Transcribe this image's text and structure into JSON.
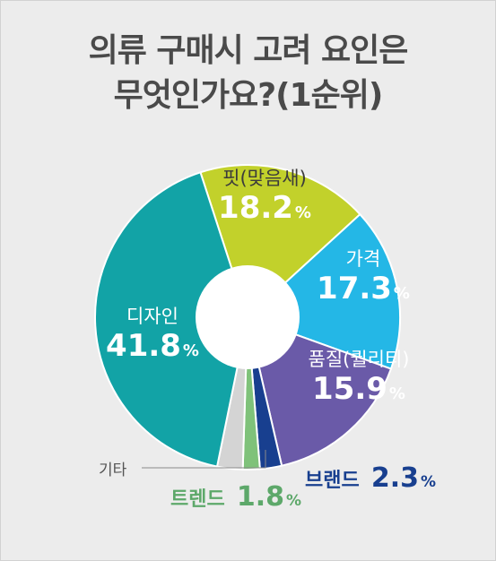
{
  "title_lines": [
    "의류 구매시 고려 요인은",
    "무엇인가요?(1순위)"
  ],
  "colors": {
    "fit": "#c2d12b",
    "price": "#24b7e6",
    "quality": "#6a5aa8",
    "brand": "#183f8f",
    "trend": "#7fc27a",
    "other": "#d4d4d4",
    "design": "#12a3a6",
    "center": "#ffffff"
  },
  "chart_data": {
    "type": "pie",
    "categories": [
      "핏(맞음새)",
      "가격",
      "품질(퀄리티)",
      "브랜드",
      "트렌드",
      "기타",
      "디자인"
    ],
    "values": [
      18.2,
      17.3,
      15.9,
      2.3,
      1.8,
      2.7,
      41.8
    ],
    "value_labels": [
      "18.2",
      "17.3",
      "15.9",
      "2.3",
      "1.8",
      "",
      "41.8"
    ],
    "unit": "%",
    "inner_hole": true
  }
}
